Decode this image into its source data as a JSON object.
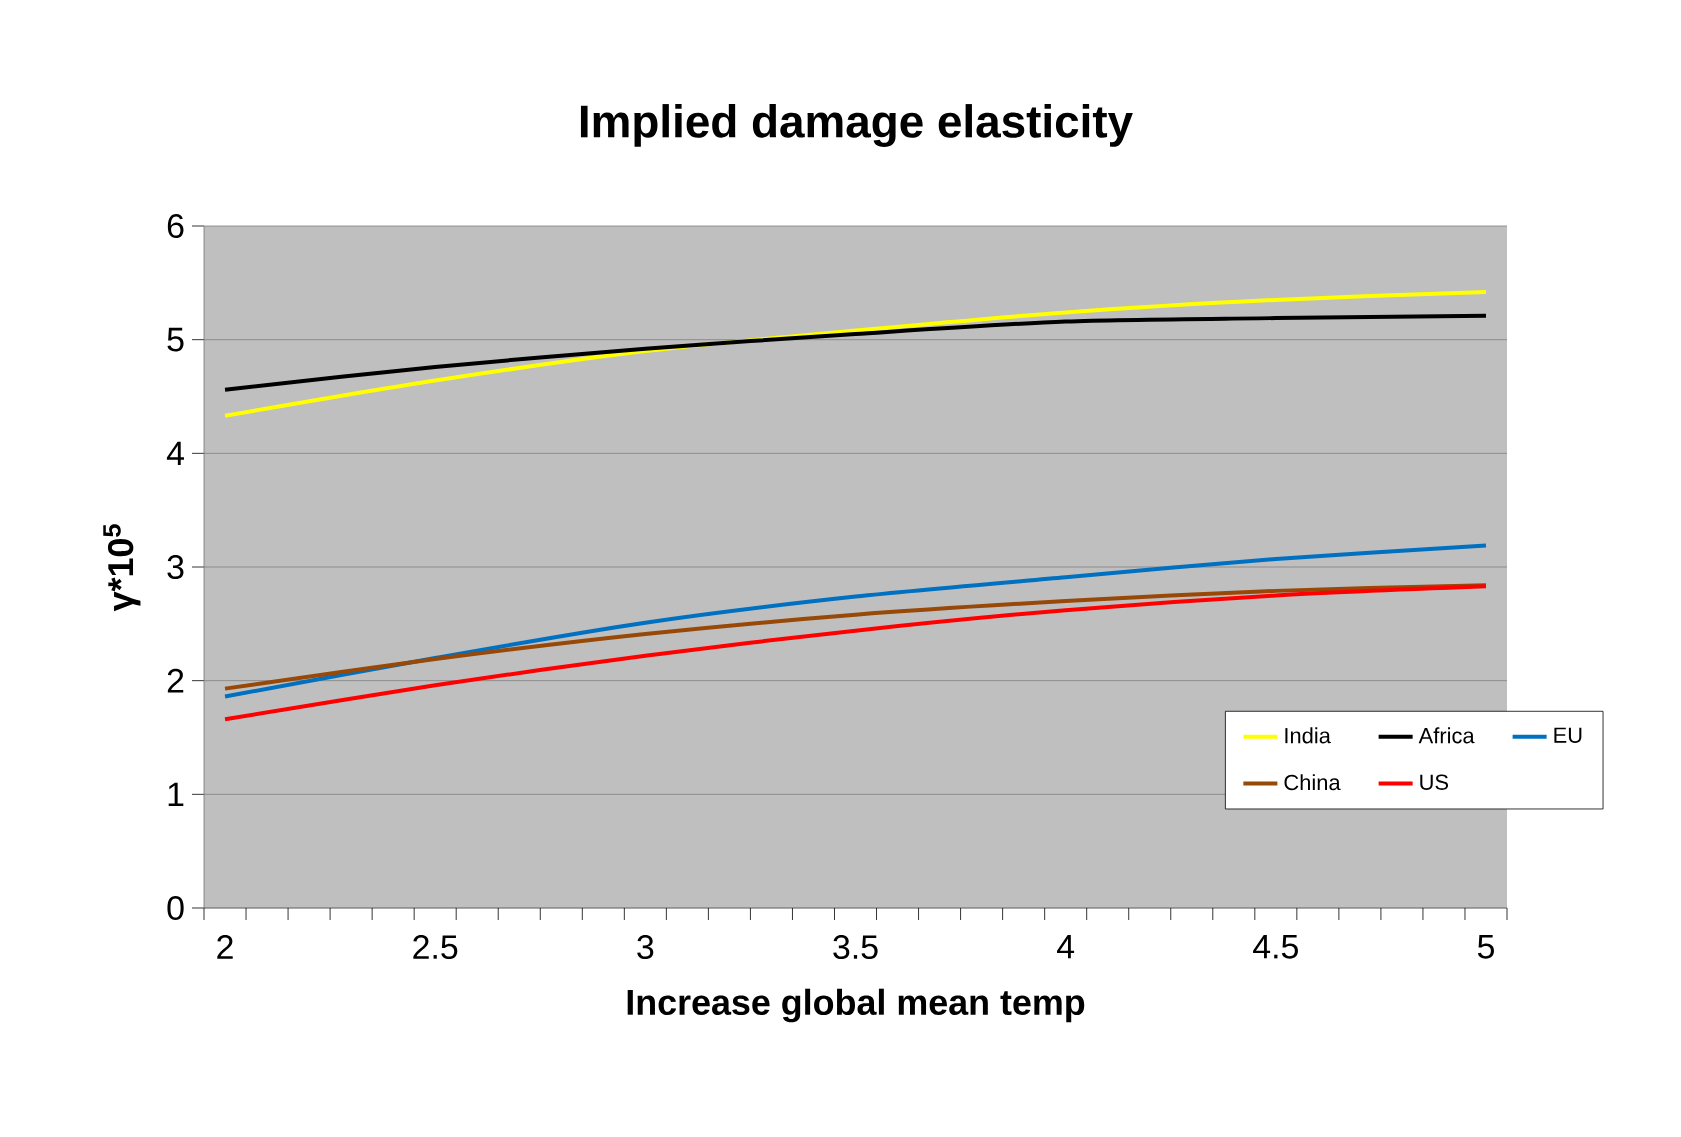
{
  "chart_data": {
    "type": "line",
    "title": "Implied damage elasticity",
    "xlabel": "Increase global mean temp",
    "ylabel": "**γ*10$^{5}$**",
    "x": [
      2,
      2.5,
      3,
      3.5,
      4,
      4.5,
      5
    ],
    "series": [
      {
        "name": "India",
        "color": "#ffff00",
        "values": [
          4.33,
          4.64,
          4.9,
          5.08,
          5.24,
          5.35,
          5.42
        ]
      },
      {
        "name": "Africa",
        "color": "#000000",
        "values": [
          4.56,
          4.76,
          4.92,
          5.05,
          5.16,
          5.19,
          5.21
        ]
      },
      {
        "name": "EU",
        "color": "#0070c0",
        "values": [
          1.86,
          2.2,
          2.51,
          2.74,
          2.91,
          3.07,
          3.19
        ]
      },
      {
        "name": "China",
        "color": "#984807",
        "values": [
          1.93,
          2.19,
          2.41,
          2.58,
          2.7,
          2.79,
          2.84
        ]
      },
      {
        "name": "US",
        "color": "#ff0000",
        "values": [
          1.66,
          1.96,
          2.22,
          2.44,
          2.62,
          2.75,
          2.83
        ]
      }
    ],
    "xlim": [
      1.95,
      5.05
    ],
    "xticks": [
      {
        "value": 1.95,
        "label": null
      },
      2,
      {
        "value": 2.05,
        "label": null
      },
      {
        "value": 2.15,
        "label": null
      },
      {
        "value": 2.25,
        "label": null
      },
      {
        "value": 2.35,
        "label": null
      },
      {
        "value": 2.45,
        "label": null
      },
      2.5,
      {
        "value": 2.55,
        "label": null
      },
      {
        "value": 2.65,
        "label": null
      },
      {
        "value": 2.75,
        "label": null
      },
      {
        "value": 2.85,
        "label": null
      },
      {
        "value": 2.95,
        "label": null
      },
      3,
      {
        "value": 3.05,
        "label": null
      },
      {
        "value": 3.15,
        "label": null
      },
      {
        "value": 3.25,
        "label": null
      },
      {
        "value": 3.35,
        "label": null
      },
      {
        "value": 3.45,
        "label": null
      },
      3.5,
      {
        "value": 3.55,
        "label": null
      },
      {
        "value": 3.65,
        "label": null
      },
      {
        "value": 3.75,
        "label": null
      },
      {
        "value": 3.85,
        "label": null
      },
      {
        "value": 3.95,
        "label": null
      },
      4,
      {
        "value": 4.05,
        "label": null
      },
      {
        "value": 4.15,
        "label": null
      },
      {
        "value": 4.25,
        "label": null
      },
      {
        "value": 4.35,
        "label": null
      },
      {
        "value": 4.45,
        "label": null
      },
      4.5,
      {
        "value": 4.55,
        "label": null
      },
      {
        "value": 4.65,
        "label": null
      },
      {
        "value": 4.75,
        "label": null
      },
      {
        "value": 4.85,
        "label": null
      },
      {
        "value": 4.95,
        "label": null
      },
      5,
      {
        "value": 5.05,
        "label": null
      }
    ],
    "ylim": [
      0,
      6
    ],
    "yticks": [
      0,
      1,
      2,
      3,
      4,
      5,
      6
    ],
    "grid": "y",
    "legend": "bottom right",
    "marker": "none",
    "line_style": "solid"
  }
}
